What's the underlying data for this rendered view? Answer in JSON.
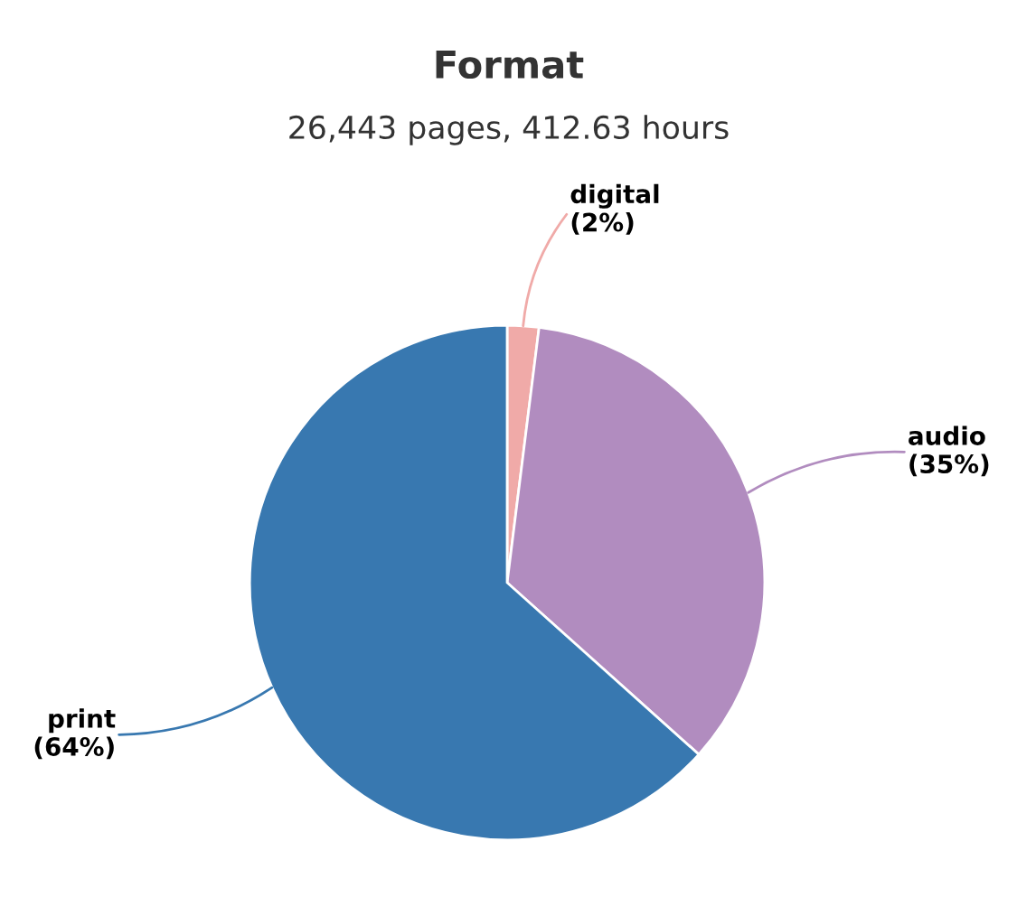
{
  "chart_data": {
    "type": "pie",
    "title": "Format",
    "subtitle": "26,443 pages, 412.63 hours",
    "categories": [
      "digital",
      "audio",
      "print"
    ],
    "values": [
      2,
      35,
      64
    ],
    "colors": [
      "#f0aaa8",
      "#b18cbf",
      "#3878b0"
    ],
    "value_labels": [
      "(2%)",
      "(35%)",
      "(64%)"
    ]
  }
}
